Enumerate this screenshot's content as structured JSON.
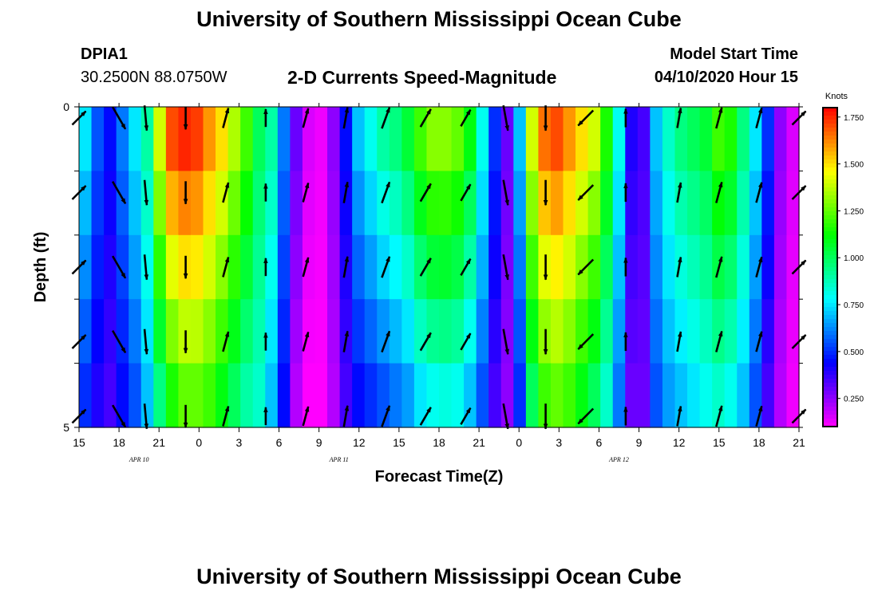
{
  "header": {
    "title": "University of Southern Mississippi Ocean Cube",
    "station": "DPIA1",
    "coordinates": "30.2500N 88.0750W",
    "subtitle": "2-D Currents Speed-Magnitude",
    "start_label": "Model Start Time",
    "start_value": "04/10/2020 Hour 15"
  },
  "footer": {
    "title": "University of Southern Mississippi Ocean Cube"
  },
  "chart_data": {
    "type": "heatmap",
    "title": "2-D Currents Speed-Magnitude",
    "xlabel": "Forecast Time(Z)",
    "ylabel": "Depth (ft)",
    "x_ticks": [
      "15",
      "18",
      "21",
      "0",
      "3",
      "6",
      "9",
      "12",
      "15",
      "18",
      "21",
      "0",
      "3",
      "6",
      "9",
      "12",
      "15",
      "18",
      "21"
    ],
    "day_labels": [
      {
        "label": "APR 10",
        "after_tick": 1
      },
      {
        "label": "APR 11",
        "after_tick": 6
      },
      {
        "label": "APR 12",
        "after_tick": 13
      }
    ],
    "y_ticks": [
      "0",
      "5"
    ],
    "ylim": [
      0,
      5
    ],
    "hours": 54,
    "depth_levels": 5,
    "colorbar": {
      "unit": "Knots",
      "range": [
        0.1,
        1.8
      ],
      "ticks": [
        "0.250",
        "0.500",
        "0.750",
        "1.000",
        "1.250",
        "1.500",
        "1.750"
      ],
      "tick_values": [
        0.25,
        0.5,
        0.75,
        1.0,
        1.25,
        1.5,
        1.75
      ]
    },
    "surface_speed": [
      0.75,
      0.55,
      0.45,
      0.6,
      0.75,
      0.9,
      1.4,
      1.7,
      1.75,
      1.72,
      1.6,
      1.5,
      1.35,
      1.2,
      1.0,
      0.9,
      0.6,
      0.3,
      0.15,
      0.12,
      0.25,
      0.45,
      0.7,
      0.8,
      0.9,
      0.95,
      1.05,
      1.2,
      1.3,
      1.3,
      1.25,
      1.1,
      0.8,
      0.5,
      0.3,
      0.7,
      1.4,
      1.65,
      1.7,
      1.6,
      1.5,
      1.4,
      1.15,
      0.8,
      0.4,
      0.35,
      0.7,
      0.85,
      0.95,
      1.0,
      1.05,
      1.2,
      1.15,
      0.95,
      0.75,
      0.5,
      0.25,
      0.15
    ],
    "bottom_speed": [
      0.5,
      0.4,
      0.35,
      0.45,
      0.55,
      0.7,
      0.95,
      1.15,
      1.25,
      1.25,
      1.2,
      1.1,
      1.0,
      0.9,
      0.85,
      0.7,
      0.45,
      0.2,
      0.1,
      0.1,
      0.2,
      0.35,
      0.45,
      0.5,
      0.55,
      0.6,
      0.65,
      0.75,
      0.8,
      0.82,
      0.8,
      0.7,
      0.55,
      0.35,
      0.25,
      0.5,
      1.0,
      1.2,
      1.25,
      1.2,
      1.1,
      1.0,
      0.85,
      0.6,
      0.3,
      0.3,
      0.55,
      0.65,
      0.7,
      0.75,
      0.8,
      0.85,
      0.8,
      0.7,
      0.55,
      0.35,
      0.2,
      0.12
    ],
    "vectors": {
      "hours": [
        0,
        3,
        5,
        8,
        11,
        14,
        17,
        20,
        23,
        26,
        29,
        32,
        35,
        38,
        41,
        45,
        48,
        51,
        54
      ],
      "direction_deg": [
        45,
        150,
        175,
        180,
        15,
        0,
        15,
        10,
        20,
        30,
        30,
        170,
        180,
        225,
        0,
        10,
        15,
        15,
        45
      ],
      "speed": [
        0.7,
        1.6,
        1.55,
        1.2,
        0.9,
        0.5,
        0.8,
        1.0,
        1.15,
        0.9,
        0.7,
        1.6,
        1.55,
        1.0,
        0.6,
        0.85,
        1.05,
        0.95,
        0.7
      ]
    }
  }
}
